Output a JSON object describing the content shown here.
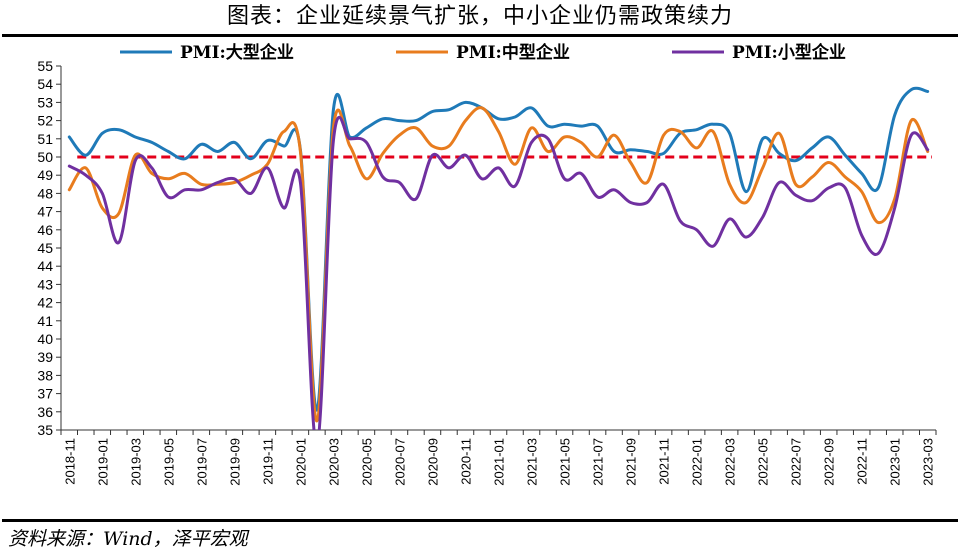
{
  "title": "图表：企业延续景气扩张，中小企业仍需政策续力",
  "source": "资料来源：Wind，泽平宏观",
  "chart_data": {
    "type": "line",
    "title": "图表：企业延续景气扩张，中小企业仍需政策续力",
    "xlabel": "",
    "ylabel": "",
    "ylim": [
      35,
      55
    ],
    "yticks": [
      35,
      36,
      37,
      38,
      39,
      40,
      41,
      42,
      43,
      44,
      45,
      46,
      47,
      48,
      49,
      50,
      51,
      52,
      53,
      54,
      55
    ],
    "x": [
      "2018-11",
      "2018-12",
      "2019-01",
      "2019-02",
      "2019-03",
      "2019-04",
      "2019-05",
      "2019-06",
      "2019-07",
      "2019-08",
      "2019-09",
      "2019-10",
      "2019-11",
      "2019-12",
      "2020-01",
      "2020-02",
      "2020-03",
      "2020-04",
      "2020-05",
      "2020-06",
      "2020-07",
      "2020-08",
      "2020-09",
      "2020-10",
      "2020-11",
      "2020-12",
      "2021-01",
      "2021-02",
      "2021-03",
      "2021-04",
      "2021-05",
      "2021-06",
      "2021-07",
      "2021-08",
      "2021-09",
      "2021-10",
      "2021-11",
      "2021-12",
      "2022-01",
      "2022-02",
      "2022-03",
      "2022-04",
      "2022-05",
      "2022-06",
      "2022-07",
      "2022-08",
      "2022-09",
      "2022-10",
      "2022-11",
      "2022-12",
      "2023-01",
      "2023-02",
      "2023-03"
    ],
    "xtick_labels": [
      "2018-11",
      "2019-01",
      "2019-03",
      "2019-05",
      "2019-07",
      "2019-09",
      "2019-11",
      "2020-01",
      "2020-03",
      "2020-05",
      "2020-07",
      "2020-09",
      "2020-11",
      "2021-01",
      "2021-03",
      "2021-05",
      "2021-07",
      "2021-09",
      "2021-11",
      "2022-01",
      "2022-03",
      "2022-05",
      "2022-07",
      "2022-09",
      "2022-11",
      "2023-01",
      "2023-03"
    ],
    "reference_line": {
      "value": 50,
      "color": "#e3001b",
      "style": "dashed"
    },
    "legend_position": "top",
    "grid": false,
    "series": [
      {
        "name": "PMI:大型企业",
        "color": "#1f7ab8",
        "values": [
          51.1,
          50.1,
          51.3,
          51.5,
          51.1,
          50.8,
          50.3,
          49.9,
          50.7,
          50.3,
          50.8,
          49.9,
          50.9,
          50.6,
          50.4,
          36.1,
          52.6,
          51.1,
          51.6,
          52.1,
          52.0,
          52.0,
          52.5,
          52.6,
          53.0,
          52.7,
          52.1,
          52.2,
          52.7,
          51.7,
          51.8,
          51.7,
          51.7,
          50.3,
          50.4,
          50.3,
          50.2,
          51.3,
          51.5,
          51.8,
          51.3,
          48.1,
          51.0,
          50.2,
          49.8,
          50.5,
          51.1,
          50.1,
          49.1,
          48.3,
          52.3,
          53.7,
          53.6
        ]
      },
      {
        "name": "PMI:中型企业",
        "color": "#e87c1e",
        "values": [
          48.2,
          49.4,
          47.2,
          46.9,
          50.1,
          49.1,
          48.8,
          49.1,
          48.5,
          48.5,
          48.6,
          49.0,
          49.6,
          51.4,
          50.3,
          35.5,
          51.6,
          50.6,
          48.8,
          50.2,
          51.2,
          51.6,
          50.6,
          50.6,
          52.0,
          52.7,
          51.4,
          49.6,
          51.6,
          50.3,
          51.1,
          50.8,
          50.0,
          51.2,
          49.7,
          48.6,
          51.2,
          51.4,
          50.5,
          51.4,
          48.5,
          47.5,
          49.4,
          51.3,
          48.5,
          48.9,
          49.7,
          48.9,
          48.1,
          46.4,
          47.7,
          52.0,
          50.3
        ]
      },
      {
        "name": "PMI:小型企业",
        "color": "#7030a0",
        "values": [
          49.5,
          49.0,
          48.0,
          45.3,
          49.8,
          49.4,
          47.8,
          48.2,
          48.2,
          48.6,
          48.8,
          48.0,
          49.4,
          47.2,
          48.6,
          34.1,
          50.9,
          51.0,
          50.8,
          48.9,
          48.6,
          47.7,
          50.1,
          49.4,
          50.1,
          48.8,
          49.4,
          48.4,
          50.8,
          51.0,
          48.8,
          49.1,
          47.8,
          48.2,
          47.5,
          47.5,
          48.5,
          46.5,
          46.0,
          45.1,
          46.6,
          45.6,
          46.7,
          48.6,
          47.9,
          47.6,
          48.3,
          48.3,
          45.7,
          44.7,
          47.2,
          51.2,
          50.4
        ]
      }
    ]
  }
}
